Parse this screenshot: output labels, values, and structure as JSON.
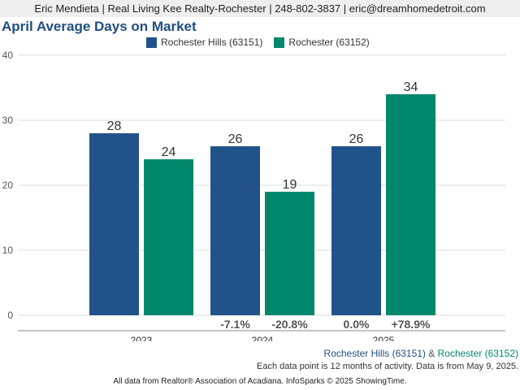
{
  "header": {
    "contact": "Eric Mendieta | Real Living Kee Realty-Rochester | 248-802-3837 | eric@dreamhomedetroit.com"
  },
  "chart_data": {
    "type": "bar",
    "title": "April Average Days on Market",
    "categories": [
      "2023",
      "2024",
      "2025"
    ],
    "series": [
      {
        "name": "Rochester Hills (63151)",
        "values": [
          28,
          26,
          26
        ],
        "color": "#21528a"
      },
      {
        "name": "Rochester (63152)",
        "values": [
          24,
          19,
          34
        ],
        "color": "#00876c"
      }
    ],
    "ylim": [
      0,
      40
    ],
    "yticks": [
      0,
      10,
      20,
      30,
      40
    ],
    "grid": true,
    "legend": "top-center",
    "pct_changes": [
      [
        "",
        ""
      ],
      [
        "-7.1%",
        "-20.8%"
      ],
      [
        "0.0%",
        "+78.9%"
      ]
    ]
  },
  "footer": {
    "series_a": "Rochester Hills (63151)",
    "joiner": " & ",
    "series_b": "Rochester (63152)",
    "note": "Each data point is 12 months of activity. Data is from May 9, 2025.",
    "source": "All data from Realtor® Association of Acadiana. InfoSparks © 2025 ShowingTime."
  }
}
